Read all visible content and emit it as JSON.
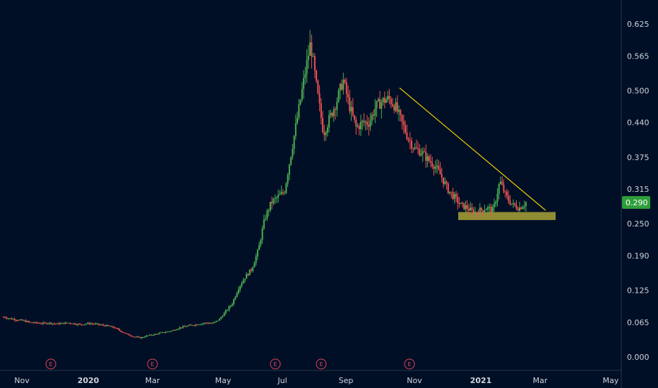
{
  "chart_data": {
    "type": "candlestick",
    "title": "",
    "xlabel": "",
    "ylabel": "",
    "ylim": [
      -0.02,
      0.67
    ],
    "grid": false,
    "y_ticks": [
      "0.625",
      "0.565",
      "0.500",
      "0.440",
      "0.375",
      "0.315",
      "0.250",
      "0.190",
      "0.125",
      "0.065",
      "0.000"
    ],
    "x_ticks": [
      {
        "label": "Nov",
        "bold": false
      },
      {
        "label": "2020",
        "bold": true
      },
      {
        "label": "Mar",
        "bold": false
      },
      {
        "label": "May",
        "bold": false
      },
      {
        "label": "Jul",
        "bold": false
      },
      {
        "label": "Sep",
        "bold": false
      },
      {
        "label": "Nov",
        "bold": false
      },
      {
        "label": "2021",
        "bold": true
      },
      {
        "label": "Mar",
        "bold": false
      },
      {
        "label": "May",
        "bold": false
      }
    ],
    "current_price": "0.290",
    "earnings_marker_label": "E",
    "earnings_markers": 5,
    "series_close": [
      0.075,
      0.072,
      0.07,
      0.068,
      0.065,
      0.064,
      0.063,
      0.064,
      0.062,
      0.063,
      0.064,
      0.062,
      0.061,
      0.063,
      0.062,
      0.06,
      0.058,
      0.055,
      0.048,
      0.042,
      0.038,
      0.036,
      0.04,
      0.042,
      0.045,
      0.047,
      0.05,
      0.055,
      0.058,
      0.06,
      0.062,
      0.064,
      0.063,
      0.07,
      0.085,
      0.1,
      0.13,
      0.15,
      0.165,
      0.2,
      0.26,
      0.29,
      0.3,
      0.31,
      0.38,
      0.45,
      0.52,
      0.59,
      0.5,
      0.42,
      0.45,
      0.48,
      0.52,
      0.47,
      0.43,
      0.44,
      0.44,
      0.47,
      0.48,
      0.485,
      0.47,
      0.44,
      0.41,
      0.39,
      0.385,
      0.37,
      0.36,
      0.34,
      0.315,
      0.3,
      0.285,
      0.28,
      0.27,
      0.275,
      0.28,
      0.275,
      0.33,
      0.3,
      0.285,
      0.28,
      0.29
    ],
    "support_zone": {
      "low": 0.257,
      "high": 0.272
    },
    "trendline": {
      "from": 0.505,
      "to": 0.275
    },
    "colors": {
      "background": "#000f26",
      "up": "#26a69a",
      "up_green": "#4caf50",
      "down": "#ef5350",
      "trendline": "#f0d000",
      "support_zone": "#9e9a36",
      "price_tag": "#2e9e3a",
      "earnings": "#e0445a",
      "axis_line": "#2a3447"
    }
  }
}
